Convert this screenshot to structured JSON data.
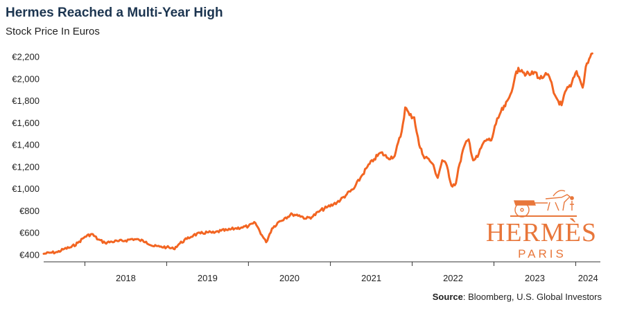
{
  "title": "Hermes Reached a Multi-Year High",
  "subtitle": "Stock Price In Euros",
  "source": {
    "label": "Source",
    "text": ": Bloomberg, U.S. Global Investors"
  },
  "logo": {
    "wordmark": "HERMÈS",
    "city": "PARIS",
    "color": "#e8763a"
  },
  "colors": {
    "line": "#f26522",
    "axis": "#333333",
    "title": "#1c3550"
  },
  "chart_data": {
    "type": "line",
    "title": "Hermes Reached a Multi-Year High",
    "subtitle": "Stock Price In Euros",
    "xlabel": "",
    "ylabel": "",
    "ylim": [
      400,
      2200
    ],
    "yticks": [
      400,
      600,
      800,
      1000,
      1200,
      1400,
      1600,
      1800,
      2000,
      2200
    ],
    "ytick_labels": [
      "€400",
      "€600",
      "€800",
      "€1,000",
      "€1,200",
      "€1,400",
      "€1,600",
      "€1,800",
      "€2,000",
      "€2,200"
    ],
    "xlim": [
      "2017-07-01",
      "2024-04-20"
    ],
    "xticks": [
      "2018",
      "2019",
      "2020",
      "2021",
      "2022",
      "2023",
      "2024"
    ],
    "grid": false,
    "series": [
      {
        "values": [
          [
            "2017-07-01",
            410
          ],
          [
            "2017-08-01",
            420
          ],
          [
            "2017-09-01",
            425
          ],
          [
            "2017-10-01",
            455
          ],
          [
            "2017-11-01",
            470
          ],
          [
            "2017-12-01",
            510
          ],
          [
            "2018-01-01",
            565
          ],
          [
            "2018-02-01",
            590
          ],
          [
            "2018-03-01",
            540
          ],
          [
            "2018-04-01",
            510
          ],
          [
            "2018-05-01",
            520
          ],
          [
            "2018-06-01",
            525
          ],
          [
            "2018-07-01",
            530
          ],
          [
            "2018-08-01",
            545
          ],
          [
            "2018-09-01",
            535
          ],
          [
            "2018-10-01",
            520
          ],
          [
            "2018-11-01",
            480
          ],
          [
            "2018-12-01",
            475
          ],
          [
            "2019-01-01",
            470
          ],
          [
            "2019-02-01",
            455
          ],
          [
            "2019-03-01",
            505
          ],
          [
            "2019-04-01",
            545
          ],
          [
            "2019-05-01",
            580
          ],
          [
            "2019-06-01",
            595
          ],
          [
            "2019-07-01",
            605
          ],
          [
            "2019-08-01",
            600
          ],
          [
            "2019-09-01",
            620
          ],
          [
            "2019-10-01",
            625
          ],
          [
            "2019-11-01",
            640
          ],
          [
            "2019-12-01",
            650
          ],
          [
            "2020-01-01",
            660
          ],
          [
            "2020-02-01",
            690
          ],
          [
            "2020-03-01",
            580
          ],
          [
            "2020-03-20",
            515
          ],
          [
            "2020-04-15",
            640
          ],
          [
            "2020-05-15",
            700
          ],
          [
            "2020-06-15",
            740
          ],
          [
            "2020-07-15",
            770
          ],
          [
            "2020-08-15",
            760
          ],
          [
            "2020-09-15",
            730
          ],
          [
            "2020-10-15",
            750
          ],
          [
            "2020-11-15",
            800
          ],
          [
            "2020-12-15",
            830
          ],
          [
            "2021-01-15",
            860
          ],
          [
            "2021-02-15",
            900
          ],
          [
            "2021-03-15",
            950
          ],
          [
            "2021-04-15",
            1000
          ],
          [
            "2021-05-15",
            1100
          ],
          [
            "2021-06-15",
            1200
          ],
          [
            "2021-07-15",
            1270
          ],
          [
            "2021-08-15",
            1330
          ],
          [
            "2021-09-15",
            1280
          ],
          [
            "2021-10-15",
            1300
          ],
          [
            "2021-11-15",
            1520
          ],
          [
            "2021-12-01",
            1740
          ],
          [
            "2021-12-20",
            1670
          ],
          [
            "2022-01-10",
            1650
          ],
          [
            "2022-02-01",
            1400
          ],
          [
            "2022-02-20",
            1300
          ],
          [
            "2022-03-10",
            1280
          ],
          [
            "2022-04-01",
            1230
          ],
          [
            "2022-04-25",
            1100
          ],
          [
            "2022-05-15",
            1260
          ],
          [
            "2022-06-05",
            1210
          ],
          [
            "2022-06-25",
            1030
          ],
          [
            "2022-07-15",
            1050
          ],
          [
            "2022-08-01",
            1230
          ],
          [
            "2022-08-20",
            1380
          ],
          [
            "2022-09-10",
            1450
          ],
          [
            "2022-09-30",
            1260
          ],
          [
            "2022-10-20",
            1290
          ],
          [
            "2022-11-10",
            1400
          ],
          [
            "2022-12-01",
            1450
          ],
          [
            "2022-12-20",
            1440
          ],
          [
            "2023-01-10",
            1590
          ],
          [
            "2023-02-01",
            1700
          ],
          [
            "2023-02-20",
            1750
          ],
          [
            "2023-03-10",
            1830
          ],
          [
            "2023-04-01",
            1980
          ],
          [
            "2023-04-20",
            2100
          ],
          [
            "2023-05-05",
            2080
          ],
          [
            "2023-05-25",
            2040
          ],
          [
            "2023-06-15",
            2040
          ],
          [
            "2023-07-05",
            2060
          ],
          [
            "2023-07-25",
            2000
          ],
          [
            "2023-08-15",
            2030
          ],
          [
            "2023-09-05",
            2020
          ],
          [
            "2023-09-25",
            1870
          ],
          [
            "2023-10-15",
            1800
          ],
          [
            "2023-10-30",
            1760
          ],
          [
            "2023-11-20",
            1900
          ],
          [
            "2023-12-10",
            1930
          ],
          [
            "2024-01-05",
            2070
          ],
          [
            "2024-01-20",
            1990
          ],
          [
            "2024-02-01",
            1920
          ],
          [
            "2024-02-15",
            2110
          ],
          [
            "2024-03-01",
            2180
          ],
          [
            "2024-03-15",
            2230
          ]
        ]
      }
    ]
  }
}
